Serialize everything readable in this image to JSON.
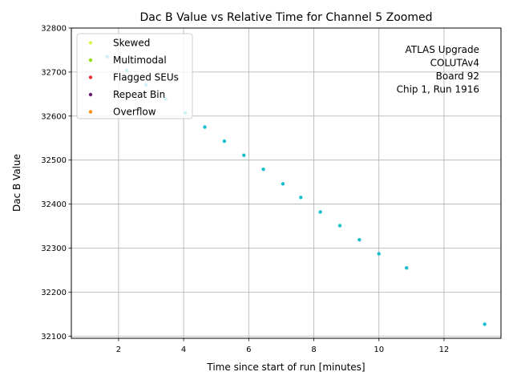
{
  "chart_data": {
    "type": "scatter",
    "title": "Dac B Value vs Relative Time for Channel 5 Zoomed",
    "xlabel": "Time since start of run [minutes]",
    "ylabel": "Dac B Value",
    "xlim": [
      0.55,
      13.75
    ],
    "ylim": [
      32095,
      32800
    ],
    "xticks": [
      2,
      4,
      6,
      8,
      10,
      12
    ],
    "yticks": [
      32100,
      32200,
      32300,
      32400,
      32500,
      32600,
      32700,
      32800
    ],
    "grid": true,
    "legend_position": "top-left",
    "legend": [
      {
        "label": "Skewed",
        "color": "#d8f54a"
      },
      {
        "label": "Multimodal",
        "color": "#8fe000"
      },
      {
        "label": "Flagged SEUs",
        "color": "#e8303c"
      },
      {
        "label": "Repeat Bin",
        "color": "#6a1a6e"
      },
      {
        "label": "Overflow",
        "color": "#ff8c00"
      }
    ],
    "annotation": [
      "ATLAS Upgrade",
      "COLUTAv4",
      "Board 92",
      "Chip 1, Run 1916"
    ],
    "series": [
      {
        "color": "#17becf",
        "x": [
          1.65,
          2.25,
          2.85,
          3.45,
          4.05,
          4.65,
          5.25,
          5.85,
          6.45,
          7.05,
          7.6,
          8.2,
          8.8,
          9.4,
          10.0,
          10.85,
          13.25
        ],
        "y": [
          32735,
          32704,
          32671,
          32639,
          32607,
          32575,
          32543,
          32511,
          32479,
          32446,
          32415,
          32382,
          32351,
          32319,
          32287,
          32255,
          32127
        ]
      }
    ]
  }
}
